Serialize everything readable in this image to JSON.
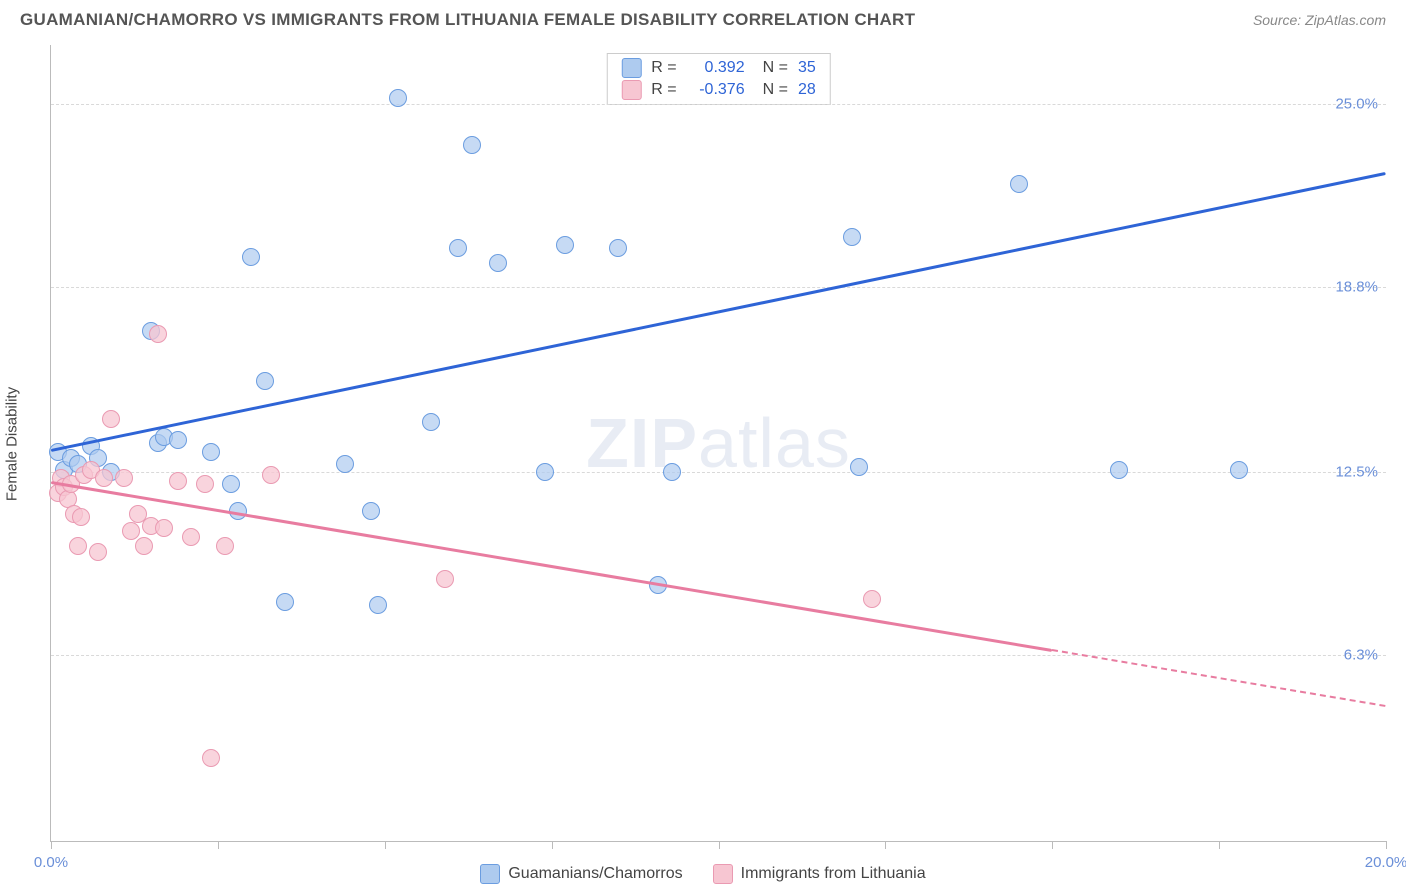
{
  "header": {
    "title": "GUAMANIAN/CHAMORRO VS IMMIGRANTS FROM LITHUANIA FEMALE DISABILITY CORRELATION CHART",
    "source": "Source: ZipAtlas.com"
  },
  "watermark": {
    "bold": "ZIP",
    "rest": "atlas"
  },
  "chart": {
    "type": "scatter",
    "background_color": "#ffffff",
    "grid_color": "#d9d9d9",
    "axis_color": "#bbbbbb",
    "ylabel": "Female Disability",
    "ylabel_color": "#444444",
    "xlim": [
      0,
      20
    ],
    "ylim": [
      0,
      27
    ],
    "y_gridlines": [
      6.3,
      12.5,
      18.8,
      25.0
    ],
    "y_tick_labels": [
      "6.3%",
      "12.5%",
      "18.8%",
      "25.0%"
    ],
    "y_tick_color": "#6a8fd8",
    "x_ticks": [
      0,
      2.5,
      5,
      7.5,
      10,
      12.5,
      15,
      17.5,
      20
    ],
    "x_tick_labels": {
      "0": "0.0%",
      "20": "20.0%"
    },
    "x_tick_color": "#6a8fd8",
    "stats_box": {
      "rows": [
        {
          "swatch_fill": "#aecbef",
          "swatch_border": "#6b9de0",
          "r_label": "R =",
          "r_val": "0.392",
          "r_color": "#2e64d6",
          "n_label": "N =",
          "n_val": "35",
          "n_color": "#2e64d6"
        },
        {
          "swatch_fill": "#f7c6d2",
          "swatch_border": "#ea9ab2",
          "r_label": "R =",
          "r_val": "-0.376",
          "r_color": "#2e64d6",
          "n_label": "N =",
          "n_val": "28",
          "n_color": "#2e64d6"
        }
      ]
    },
    "legend": [
      {
        "swatch_fill": "#aecbef",
        "swatch_border": "#6b9de0",
        "label": "Guamanians/Chamorros"
      },
      {
        "swatch_fill": "#f7c6d2",
        "swatch_border": "#ea9ab2",
        "label": "Immigrants from Lithuania"
      }
    ],
    "series": [
      {
        "name": "guam",
        "marker_fill": "rgba(174,203,239,0.7)",
        "marker_border": "#6b9de0",
        "marker_size": 18,
        "trend_color": "#2e64d6",
        "trend": {
          "x1": 0,
          "y1": 13.3,
          "x2": 20,
          "y2": 22.7
        },
        "points": [
          [
            0.1,
            13.2
          ],
          [
            0.2,
            12.6
          ],
          [
            0.3,
            13.0
          ],
          [
            0.4,
            12.8
          ],
          [
            0.6,
            13.4
          ],
          [
            0.7,
            13.0
          ],
          [
            0.9,
            12.5
          ],
          [
            1.5,
            17.3
          ],
          [
            1.6,
            13.5
          ],
          [
            1.7,
            13.7
          ],
          [
            1.9,
            13.6
          ],
          [
            2.4,
            13.2
          ],
          [
            2.7,
            12.1
          ],
          [
            2.8,
            11.2
          ],
          [
            3.0,
            19.8
          ],
          [
            3.2,
            15.6
          ],
          [
            3.5,
            8.1
          ],
          [
            4.4,
            12.8
          ],
          [
            4.8,
            11.2
          ],
          [
            4.9,
            8.0
          ],
          [
            5.2,
            25.2
          ],
          [
            5.7,
            14.2
          ],
          [
            6.1,
            20.1
          ],
          [
            6.3,
            23.6
          ],
          [
            6.7,
            19.6
          ],
          [
            7.4,
            12.5
          ],
          [
            7.7,
            20.2
          ],
          [
            8.5,
            20.1
          ],
          [
            9.1,
            8.7
          ],
          [
            9.3,
            12.5
          ],
          [
            12.0,
            20.5
          ],
          [
            12.1,
            12.7
          ],
          [
            14.5,
            22.3
          ],
          [
            16.0,
            12.6
          ],
          [
            17.8,
            12.6
          ]
        ]
      },
      {
        "name": "lithuania",
        "marker_fill": "rgba(247,198,210,0.75)",
        "marker_border": "#ea9ab2",
        "marker_size": 18,
        "trend_color": "#e87ca0",
        "trend_solid": {
          "x1": 0,
          "y1": 12.2,
          "x2": 15,
          "y2": 6.5
        },
        "trend_dash": {
          "x1": 15,
          "y1": 6.5,
          "x2": 20,
          "y2": 4.6
        },
        "points": [
          [
            0.1,
            11.8
          ],
          [
            0.15,
            12.3
          ],
          [
            0.2,
            12.0
          ],
          [
            0.25,
            11.6
          ],
          [
            0.3,
            12.1
          ],
          [
            0.35,
            11.1
          ],
          [
            0.4,
            10.0
          ],
          [
            0.45,
            11.0
          ],
          [
            0.5,
            12.4
          ],
          [
            0.6,
            12.6
          ],
          [
            0.7,
            9.8
          ],
          [
            0.8,
            12.3
          ],
          [
            0.9,
            14.3
          ],
          [
            1.1,
            12.3
          ],
          [
            1.2,
            10.5
          ],
          [
            1.3,
            11.1
          ],
          [
            1.4,
            10.0
          ],
          [
            1.5,
            10.7
          ],
          [
            1.6,
            17.2
          ],
          [
            1.7,
            10.6
          ],
          [
            1.9,
            12.2
          ],
          [
            2.1,
            10.3
          ],
          [
            2.3,
            12.1
          ],
          [
            2.4,
            2.8
          ],
          [
            2.6,
            10.0
          ],
          [
            3.3,
            12.4
          ],
          [
            5.9,
            8.9
          ],
          [
            12.3,
            8.2
          ]
        ]
      }
    ]
  }
}
